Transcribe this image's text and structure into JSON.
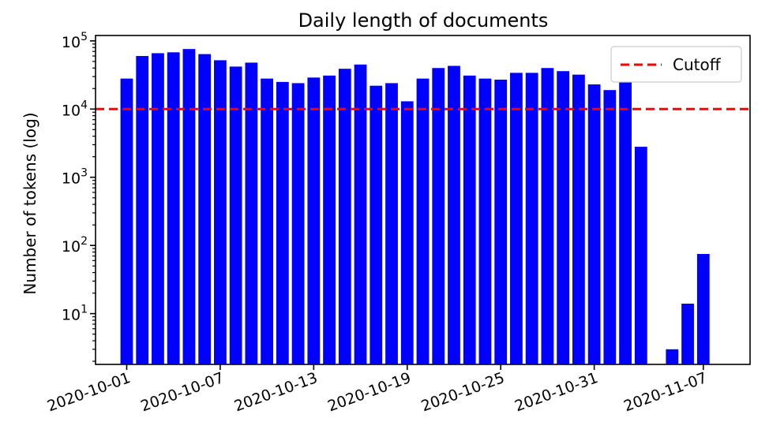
{
  "chart_data": {
    "type": "bar",
    "title": "Daily length of documents",
    "xlabel": "",
    "ylabel": "Number of tokens (log)",
    "yscale": "log",
    "ylim": [
      1.8,
      120000
    ],
    "xlim": [
      "2020-09-29",
      "2020-11-10"
    ],
    "y_ticks": [
      {
        "value": 10,
        "base": "10",
        "exp": "1"
      },
      {
        "value": 100,
        "base": "10",
        "exp": "2"
      },
      {
        "value": 1000,
        "base": "10",
        "exp": "3"
      },
      {
        "value": 10000,
        "base": "10",
        "exp": "4"
      },
      {
        "value": 100000,
        "base": "10",
        "exp": "5"
      }
    ],
    "x_tick_labels": [
      "2020-10-01",
      "2020-10-07",
      "2020-10-13",
      "2020-10-19",
      "2020-10-25",
      "2020-10-31",
      "2020-11-07"
    ],
    "categories": [
      "2020-10-01",
      "2020-10-02",
      "2020-10-03",
      "2020-10-04",
      "2020-10-05",
      "2020-10-06",
      "2020-10-07",
      "2020-10-08",
      "2020-10-09",
      "2020-10-10",
      "2020-10-11",
      "2020-10-12",
      "2020-10-13",
      "2020-10-14",
      "2020-10-15",
      "2020-10-16",
      "2020-10-17",
      "2020-10-18",
      "2020-10-19",
      "2020-10-20",
      "2020-10-21",
      "2020-10-22",
      "2020-10-23",
      "2020-10-24",
      "2020-10-25",
      "2020-10-26",
      "2020-10-27",
      "2020-10-28",
      "2020-10-29",
      "2020-10-30",
      "2020-10-31",
      "2020-11-01",
      "2020-11-02",
      "2020-11-03",
      "2020-11-04",
      "2020-11-05",
      "2020-11-06",
      "2020-11-07"
    ],
    "values": [
      28000,
      60000,
      66000,
      68000,
      76000,
      64000,
      52000,
      42000,
      48000,
      28000,
      25000,
      24000,
      29000,
      31000,
      39000,
      45000,
      22000,
      24000,
      13000,
      28000,
      40000,
      43000,
      31000,
      28000,
      27000,
      34000,
      34000,
      40000,
      36000,
      32000,
      23000,
      19000,
      33000,
      2800,
      null,
      3,
      14,
      75
    ],
    "series": [
      {
        "name": "",
        "color": "#0000ff"
      }
    ],
    "cutoff": {
      "label": "Cutoff",
      "value": 10000,
      "color": "#ff0000",
      "style": "dashed"
    },
    "legend_position": "top-right",
    "grid": false
  }
}
